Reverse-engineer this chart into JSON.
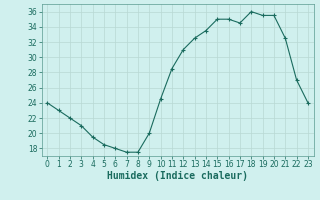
{
  "x": [
    0,
    1,
    2,
    3,
    4,
    5,
    6,
    7,
    8,
    9,
    10,
    11,
    12,
    13,
    14,
    15,
    16,
    17,
    18,
    19,
    20,
    21,
    22,
    23
  ],
  "y": [
    24,
    23,
    22,
    21,
    19.5,
    18.5,
    18,
    17.5,
    17.5,
    20,
    24.5,
    28.5,
    31,
    32.5,
    33.5,
    35,
    35,
    34.5,
    36,
    35.5,
    35.5,
    32.5,
    27,
    24
  ],
  "line_color": "#1a6b5e",
  "marker": "+",
  "marker_size": 3,
  "marker_color": "#1a6b5e",
  "bg_color": "#d0f0ee",
  "grid_color": "#b8d8d4",
  "xlabel": "Humidex (Indice chaleur)",
  "xlim": [
    -0.5,
    23.5
  ],
  "ylim": [
    17,
    37
  ],
  "yticks": [
    18,
    20,
    22,
    24,
    26,
    28,
    30,
    32,
    34,
    36
  ],
  "xticks": [
    0,
    1,
    2,
    3,
    4,
    5,
    6,
    7,
    8,
    9,
    10,
    11,
    12,
    13,
    14,
    15,
    16,
    17,
    18,
    19,
    20,
    21,
    22,
    23
  ],
  "tick_label_fontsize": 5.5,
  "xlabel_fontsize": 7
}
